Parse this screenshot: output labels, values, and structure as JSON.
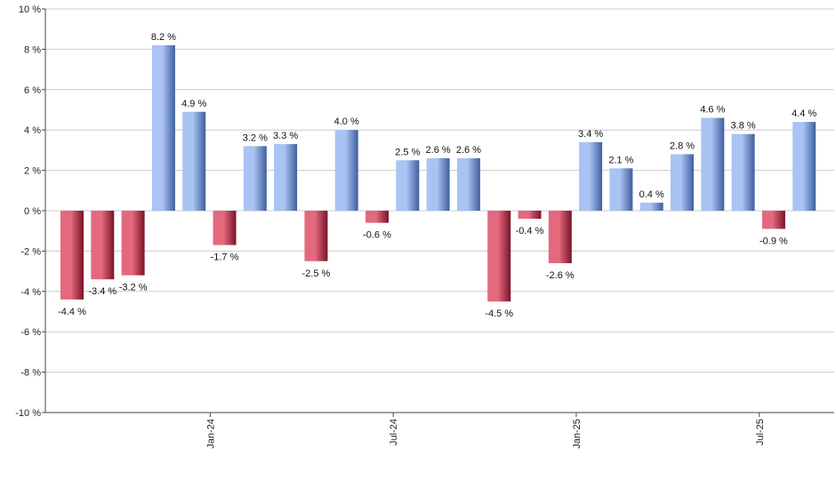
{
  "chart_data": {
    "type": "bar",
    "title": "",
    "xlabel": "",
    "ylabel": "",
    "ylim": [
      -10,
      10
    ],
    "y_ticks": [
      10,
      8,
      6,
      4,
      2,
      0,
      -2,
      -4,
      -6,
      -8,
      -10
    ],
    "y_tick_labels": [
      "10 %",
      "8 %",
      "6 %",
      "4 %",
      "2 %",
      "0 %",
      "-2 %",
      "-4 %",
      "-6 %",
      "-8 %",
      "-10 %"
    ],
    "grid": true,
    "legend": "none",
    "value_suffix": " %",
    "x_tick_labels": [
      {
        "label": "Jan-24",
        "bar_index": 5
      },
      {
        "label": "Jul-24",
        "bar_index": 11
      },
      {
        "label": "Jan-25",
        "bar_index": 17
      },
      {
        "label": "Jul-25",
        "bar_index": 23
      }
    ],
    "values": [
      -4.4,
      -3.4,
      -3.2,
      8.2,
      4.9,
      -1.7,
      3.2,
      3.3,
      -2.5,
      4.0,
      -0.6,
      2.5,
      2.6,
      2.6,
      -4.5,
      -0.4,
      -2.6,
      3.4,
      2.1,
      0.4,
      2.8,
      4.6,
      3.8,
      -0.9,
      4.4
    ],
    "labels": [
      "-4.4 %",
      "-3.4 %",
      "-3.2 %",
      "8.2 %",
      "4.9 %",
      "-1.7 %",
      "3.2 %",
      "3.3 %",
      "-2.5 %",
      "4.0 %",
      "-0.6 %",
      "2.5 %",
      "2.6 %",
      "2.6 %",
      "-4.5 %",
      "-0.4 %",
      "-2.6 %",
      "3.4 %",
      "2.1 %",
      "0.4 %",
      "2.8 %",
      "4.6 %",
      "3.8 %",
      "-0.9 %",
      "4.4 %"
    ],
    "colors": {
      "positive_light": "#a9c3f2",
      "positive_dark": "#3f5f9e",
      "negative_light": "#e4697f",
      "negative_dark": "#7a1328",
      "grid": "#cccccc",
      "axis": "#444444"
    }
  }
}
